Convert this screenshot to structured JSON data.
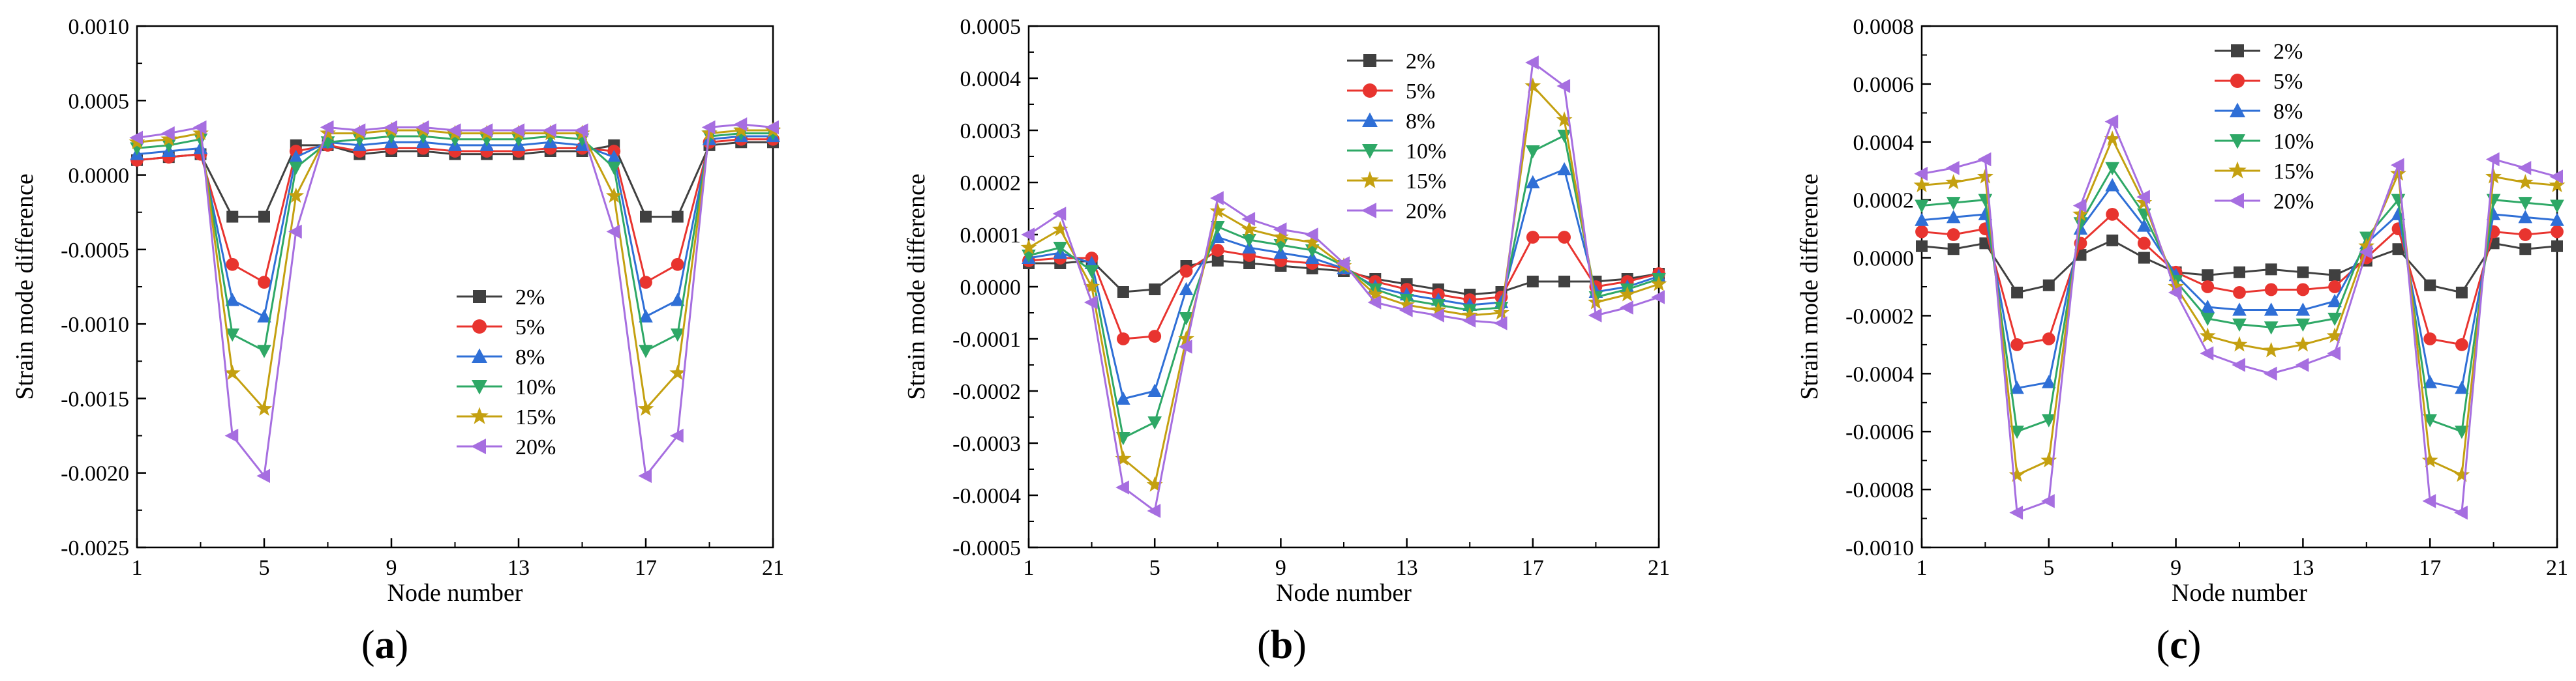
{
  "styles": {
    "series": [
      {
        "color": "#404040",
        "marker": "square"
      },
      {
        "color": "#e8342f",
        "marker": "circle"
      },
      {
        "color": "#2f6fd6",
        "marker": "triangle-up"
      },
      {
        "color": "#2ea866",
        "marker": "triangle-down"
      },
      {
        "color": "#c4a010",
        "marker": "star"
      },
      {
        "color": "#a66ee0",
        "marker": "triangle-left"
      }
    ]
  },
  "chart_data": [
    {
      "type": "line",
      "panel_label": {
        "open": "(",
        "letter": "a",
        "close": ")"
      },
      "xlabel": "Node number",
      "ylabel": "Strain mode difference",
      "x": [
        1,
        2,
        3,
        4,
        5,
        6,
        7,
        8,
        9,
        10,
        11,
        12,
        13,
        14,
        15,
        16,
        17,
        18,
        19,
        20,
        21
      ],
      "xlim": [
        1,
        21
      ],
      "xticks": [
        "1",
        "5",
        "9",
        "13",
        "17",
        "21"
      ],
      "ylim": [
        -0.0025,
        0.001
      ],
      "yticks": [
        "-0.0025",
        "-0.0020",
        "-0.0015",
        "-0.0010",
        "-0.0005",
        "0.0000",
        "0.0005",
        "0.0010"
      ],
      "legend": "center-right",
      "series": [
        {
          "name": "2%",
          "values": [
            0.0001,
            0.00012,
            0.00014,
            -0.00028,
            -0.00028,
            0.0002,
            0.0002,
            0.00014,
            0.00016,
            0.00016,
            0.00014,
            0.00014,
            0.00014,
            0.00016,
            0.00016,
            0.0002,
            -0.00028,
            -0.00028,
            0.0002,
            0.00022,
            0.00022
          ]
        },
        {
          "name": "5%",
          "values": [
            0.0001,
            0.00012,
            0.00014,
            -0.0006,
            -0.00072,
            0.00016,
            0.0002,
            0.00016,
            0.00018,
            0.00018,
            0.00016,
            0.00016,
            0.00016,
            0.00018,
            0.00018,
            0.00016,
            -0.00072,
            -0.0006,
            0.00022,
            0.00024,
            0.00024
          ]
        },
        {
          "name": "8%",
          "values": [
            0.00014,
            0.00016,
            0.00018,
            -0.00084,
            -0.00095,
            0.00012,
            0.00022,
            0.0002,
            0.00022,
            0.00022,
            0.0002,
            0.0002,
            0.0002,
            0.00022,
            0.0002,
            0.00012,
            -0.00095,
            -0.00084,
            0.00024,
            0.00026,
            0.00026
          ]
        },
        {
          "name": "10%",
          "values": [
            0.00018,
            0.0002,
            0.00024,
            -0.00107,
            -0.00118,
            5e-05,
            0.00022,
            0.00024,
            0.00026,
            0.00026,
            0.00024,
            0.00024,
            0.00024,
            0.00026,
            0.00024,
            5e-05,
            -0.00118,
            -0.00107,
            0.00026,
            0.00028,
            0.00028
          ]
        },
        {
          "name": "15%",
          "values": [
            0.00022,
            0.00024,
            0.00028,
            -0.00133,
            -0.00157,
            -0.00014,
            0.00028,
            0.00028,
            0.0003,
            0.0003,
            0.00028,
            0.00028,
            0.00028,
            0.00028,
            0.00028,
            -0.00014,
            -0.00157,
            -0.00133,
            0.00028,
            0.0003,
            0.0003
          ]
        },
        {
          "name": "20%",
          "values": [
            0.00025,
            0.00028,
            0.00032,
            -0.00175,
            -0.00202,
            -0.00038,
            0.00032,
            0.0003,
            0.00032,
            0.00032,
            0.0003,
            0.0003,
            0.0003,
            0.0003,
            0.0003,
            -0.00038,
            -0.00202,
            -0.00175,
            0.00032,
            0.00034,
            0.00032
          ]
        }
      ]
    },
    {
      "type": "line",
      "panel_label": {
        "open": "(",
        "letter": "b",
        "close": ")"
      },
      "xlabel": "Node number",
      "ylabel": "Strain mode difference",
      "x": [
        1,
        2,
        3,
        4,
        5,
        6,
        7,
        8,
        9,
        10,
        11,
        12,
        13,
        14,
        15,
        16,
        17,
        18,
        19,
        20,
        21
      ],
      "xlim": [
        1,
        21
      ],
      "xticks": [
        "1",
        "5",
        "9",
        "13",
        "17",
        "21"
      ],
      "ylim": [
        -0.0005,
        0.0005
      ],
      "yticks": [
        "-0.0005",
        "-0.0004",
        "-0.0003",
        "-0.0002",
        "-0.0001",
        "0.0000",
        "0.0001",
        "0.0002",
        "0.0003",
        "0.0004",
        "0.0005"
      ],
      "legend": "top-center",
      "series": [
        {
          "name": "2%",
          "values": [
            4.5e-05,
            4.5e-05,
            5e-05,
            -1e-05,
            -5e-06,
            4e-05,
            5e-05,
            4.5e-05,
            4e-05,
            3.5e-05,
            3e-05,
            1.5e-05,
            5e-06,
            -5e-06,
            -1.5e-05,
            -1e-05,
            1e-05,
            1e-05,
            1e-05,
            1.5e-05,
            2.5e-05
          ]
        },
        {
          "name": "5%",
          "values": [
            5e-05,
            5.5e-05,
            5.5e-05,
            -0.0001,
            -9.5e-05,
            3e-05,
            7e-05,
            6e-05,
            5e-05,
            4.5e-05,
            3.5e-05,
            1e-05,
            -5e-06,
            -1.5e-05,
            -2.5e-05,
            -2e-05,
            9.5e-05,
            9.5e-05,
            0.0,
            1e-05,
            2.5e-05
          ]
        },
        {
          "name": "8%",
          "values": [
            5.5e-05,
            6.5e-05,
            4.5e-05,
            -0.000215,
            -0.0002,
            -5e-06,
            9.5e-05,
            7.5e-05,
            6.5e-05,
            5.5e-05,
            3.5e-05,
            0.0,
            -1.5e-05,
            -2.5e-05,
            -3.5e-05,
            -3e-05,
            0.0002,
            0.000225,
            -1e-05,
            0.0,
            2e-05
          ]
        },
        {
          "name": "10%",
          "values": [
            6e-05,
            7.5e-05,
            3e-05,
            -0.00029,
            -0.00026,
            -6e-05,
            0.000115,
            9e-05,
            8e-05,
            7e-05,
            4e-05,
            -5e-06,
            -2.5e-05,
            -3.5e-05,
            -4.5e-05,
            -4e-05,
            0.00026,
            0.00029,
            -2e-05,
            -5e-06,
            1.5e-05
          ]
        },
        {
          "name": "15%",
          "values": [
            7.5e-05,
            0.00011,
            0.0,
            -0.00033,
            -0.00038,
            -0.0001,
            0.000145,
            0.00011,
            9.5e-05,
            8.5e-05,
            4e-05,
            -1.5e-05,
            -3.5e-05,
            -4.5e-05,
            -5.5e-05,
            -5e-05,
            0.000385,
            0.00032,
            -3e-05,
            -1.5e-05,
            5e-06
          ]
        },
        {
          "name": "20%",
          "values": [
            0.0001,
            0.00014,
            -3e-05,
            -0.000385,
            -0.00043,
            -0.000115,
            0.00017,
            0.00013,
            0.00011,
            0.0001,
            4.5e-05,
            -3e-05,
            -4.5e-05,
            -5.5e-05,
            -6.5e-05,
            -7e-05,
            0.00043,
            0.000385,
            -5.5e-05,
            -4e-05,
            -2e-05
          ]
        }
      ]
    },
    {
      "type": "line",
      "panel_label": {
        "open": "(",
        "letter": "c",
        "close": ")"
      },
      "xlabel": "Node number",
      "ylabel": "Strain mode difference",
      "x": [
        1,
        2,
        3,
        4,
        5,
        6,
        7,
        8,
        9,
        10,
        11,
        12,
        13,
        14,
        15,
        16,
        17,
        18,
        19,
        20,
        21
      ],
      "xlim": [
        1,
        21
      ],
      "xticks": [
        "1",
        "5",
        "9",
        "13",
        "17",
        "21"
      ],
      "ylim": [
        -0.001,
        0.0008
      ],
      "yticks": [
        "-0.0010",
        "-0.0008",
        "-0.0006",
        "-0.0004",
        "-0.0002",
        "0.0000",
        "0.0002",
        "0.0004",
        "0.0006",
        "0.0008"
      ],
      "legend": "top-center",
      "series": [
        {
          "name": "2%",
          "values": [
            4e-05,
            3e-05,
            5e-05,
            -0.00012,
            -9.5e-05,
            1e-05,
            6e-05,
            0.0,
            -5e-05,
            -6e-05,
            -5e-05,
            -4e-05,
            -5e-05,
            -6e-05,
            -1e-05,
            3e-05,
            -9.5e-05,
            -0.00012,
            5e-05,
            3e-05,
            4e-05
          ]
        },
        {
          "name": "5%",
          "values": [
            9e-05,
            8e-05,
            0.0001,
            -0.0003,
            -0.00028,
            5e-05,
            0.00015,
            5e-05,
            -5e-05,
            -0.0001,
            -0.00012,
            -0.00011,
            -0.00011,
            -0.0001,
            0.0,
            0.0001,
            -0.00028,
            -0.0003,
            9e-05,
            8e-05,
            9e-05
          ]
        },
        {
          "name": "8%",
          "values": [
            0.00013,
            0.00014,
            0.00015,
            -0.00045,
            -0.00043,
            0.0001,
            0.00025,
            0.00011,
            -6e-05,
            -0.00017,
            -0.00018,
            -0.00018,
            -0.00018,
            -0.00015,
            5e-05,
            0.00015,
            -0.00043,
            -0.00045,
            0.00015,
            0.00014,
            0.00013
          ]
        },
        {
          "name": "10%",
          "values": [
            0.00018,
            0.00019,
            0.0002,
            -0.0006,
            -0.00056,
            0.00012,
            0.00031,
            0.00015,
            -8e-05,
            -0.00021,
            -0.00023,
            -0.00024,
            -0.00023,
            -0.00021,
            7e-05,
            0.0002,
            -0.00056,
            -0.0006,
            0.0002,
            0.00019,
            0.00018
          ]
        },
        {
          "name": "15%",
          "values": [
            0.00025,
            0.00026,
            0.00028,
            -0.00075,
            -0.0007,
            0.00015,
            0.00041,
            0.00019,
            -0.0001,
            -0.00027,
            -0.0003,
            -0.00032,
            -0.0003,
            -0.00027,
            4e-05,
            0.00029,
            -0.0007,
            -0.00075,
            0.00028,
            0.00026,
            0.00025
          ]
        },
        {
          "name": "20%",
          "values": [
            0.00029,
            0.00031,
            0.00034,
            -0.00088,
            -0.00084,
            0.00018,
            0.00047,
            0.00021,
            -0.00012,
            -0.00033,
            -0.00037,
            -0.0004,
            -0.00037,
            -0.00033,
            2e-05,
            0.00032,
            -0.00084,
            -0.00088,
            0.00034,
            0.00031,
            0.00028
          ]
        }
      ]
    }
  ]
}
